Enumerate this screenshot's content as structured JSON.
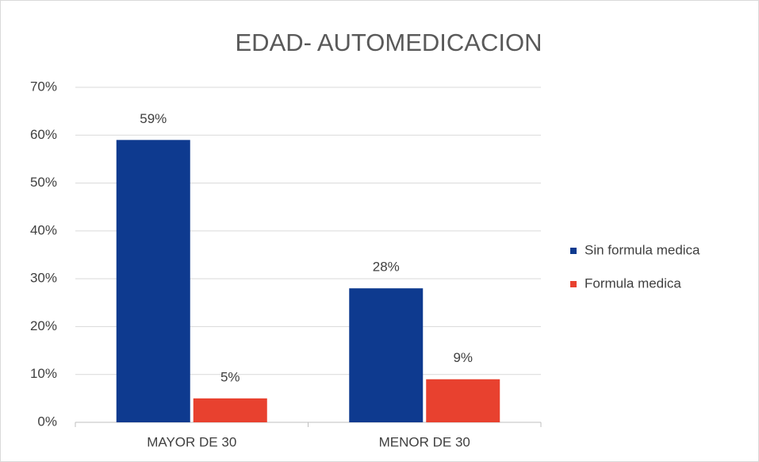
{
  "chart_data": {
    "type": "bar",
    "title": "EDAD- AUTOMEDICACION",
    "categories": [
      "MAYOR DE 30",
      "MENOR DE 30"
    ],
    "series": [
      {
        "name": "Sin formula medica",
        "color": "#0e3a8f",
        "values": [
          59,
          28
        ],
        "value_labels": [
          "59%",
          "28%"
        ]
      },
      {
        "name": "Formula medica",
        "color": "#e8412f",
        "values": [
          5,
          9
        ],
        "value_labels": [
          "5%",
          "9%"
        ]
      }
    ],
    "ylim": [
      0,
      70
    ],
    "yticks": [
      {
        "value": 0,
        "label": "0%"
      },
      {
        "value": 10,
        "label": "10%"
      },
      {
        "value": 20,
        "label": "20%"
      },
      {
        "value": 30,
        "label": "30%"
      },
      {
        "value": 40,
        "label": "40%"
      },
      {
        "value": 50,
        "label": "50%"
      },
      {
        "value": 60,
        "label": "60%"
      },
      {
        "value": 70,
        "label": "70%"
      }
    ],
    "grid": true,
    "legend": "right"
  }
}
